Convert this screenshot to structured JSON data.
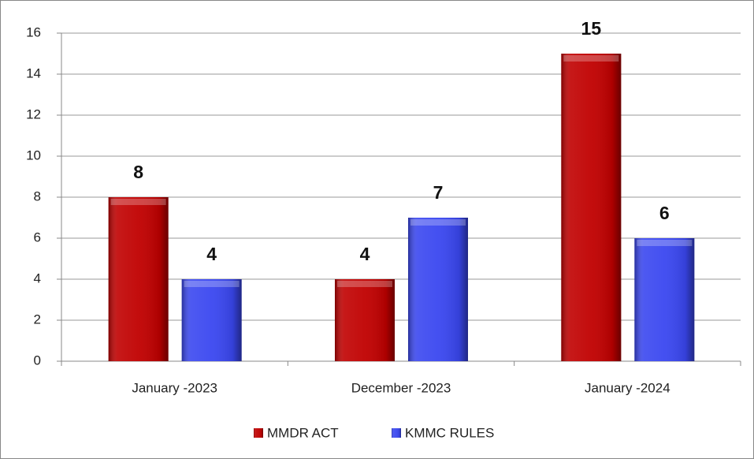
{
  "chart_data": {
    "type": "bar",
    "categories": [
      "January -2023",
      "December -2023",
      "January -2024"
    ],
    "series": [
      {
        "name": "MMDR ACT",
        "color": "#c00000",
        "values": [
          8,
          4,
          15
        ]
      },
      {
        "name": "KMMC RULES",
        "color": "#3a47f0",
        "values": [
          4,
          7,
          6
        ]
      }
    ],
    "ylim": [
      0,
      16
    ],
    "yticks": [
      0,
      2,
      4,
      6,
      8,
      10,
      12,
      14,
      16
    ],
    "grid": true,
    "legend": "bottom"
  }
}
